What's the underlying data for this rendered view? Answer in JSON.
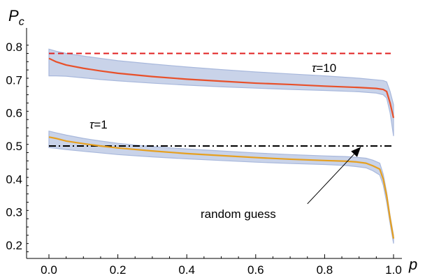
{
  "chart_data": {
    "type": "line",
    "xlabel": "p",
    "ylabel": "P",
    "ylabel_sub": "c",
    "xlim": [
      0.0,
      1.0
    ],
    "ylim": [
      0.18,
      0.82
    ],
    "xticks": [
      0.0,
      0.2,
      0.4,
      0.6,
      0.8,
      1.0
    ],
    "xtick_labels": [
      "0.0",
      "0.2",
      "0.4",
      "0.6",
      "0.8",
      "1.0"
    ],
    "yticks": [
      0.2,
      0.3,
      0.4,
      0.5,
      0.6,
      0.7,
      0.8
    ],
    "ytick_labels": [
      "0.2",
      "0.3",
      "0.4",
      "0.5",
      "0.6",
      "0.7",
      "0.8"
    ],
    "series": [
      {
        "label": "τ=10",
        "label_symbol": "τ",
        "label_value": "=10",
        "color": "#e8502a",
        "x": [
          0.0,
          0.02,
          0.05,
          0.1,
          0.15,
          0.2,
          0.3,
          0.4,
          0.5,
          0.6,
          0.7,
          0.8,
          0.9,
          0.95,
          0.97,
          0.98,
          0.99,
          1.0
        ],
        "y": [
          0.765,
          0.755,
          0.745,
          0.735,
          0.727,
          0.72,
          0.71,
          0.702,
          0.696,
          0.69,
          0.686,
          0.681,
          0.677,
          0.674,
          0.671,
          0.665,
          0.63,
          0.585
        ],
        "band_upper": [
          0.793,
          0.787,
          0.78,
          0.772,
          0.765,
          0.758,
          0.748,
          0.739,
          0.731,
          0.724,
          0.718,
          0.712,
          0.705,
          0.7,
          0.698,
          0.694,
          0.665,
          0.625
        ],
        "band_lower": [
          0.712,
          0.712,
          0.711,
          0.706,
          0.701,
          0.697,
          0.69,
          0.684,
          0.679,
          0.675,
          0.671,
          0.668,
          0.664,
          0.66,
          0.655,
          0.645,
          0.6,
          0.53
        ]
      },
      {
        "label": "τ=1",
        "label_symbol": "τ",
        "label_value": "=1",
        "color": "#e6a020",
        "x": [
          0.0,
          0.02,
          0.05,
          0.1,
          0.15,
          0.2,
          0.3,
          0.4,
          0.5,
          0.6,
          0.7,
          0.8,
          0.86,
          0.89,
          0.92,
          0.94,
          0.96,
          0.97,
          0.98,
          0.99,
          1.0
        ],
        "y": [
          0.527,
          0.523,
          0.515,
          0.507,
          0.5,
          0.494,
          0.485,
          0.477,
          0.471,
          0.465,
          0.46,
          0.456,
          0.454,
          0.452,
          0.448,
          0.44,
          0.43,
          0.4,
          0.35,
          0.28,
          0.22
        ],
        "band_upper": [
          0.545,
          0.54,
          0.533,
          0.523,
          0.515,
          0.508,
          0.498,
          0.491,
          0.485,
          0.479,
          0.474,
          0.47,
          0.468,
          0.466,
          0.463,
          0.457,
          0.448,
          0.415,
          0.36,
          0.29,
          0.23
        ],
        "band_lower": [
          0.495,
          0.493,
          0.489,
          0.484,
          0.479,
          0.474,
          0.467,
          0.461,
          0.456,
          0.451,
          0.447,
          0.444,
          0.441,
          0.438,
          0.434,
          0.425,
          0.412,
          0.382,
          0.33,
          0.265,
          0.205
        ]
      }
    ],
    "reference_lines": [
      {
        "label": "",
        "y": 0.78,
        "color": "#e02020",
        "style": "dashed"
      },
      {
        "label": "random guess",
        "y": 0.5,
        "color": "#000000",
        "style": "dashdot"
      }
    ],
    "annotations": {
      "arrow_text": "random guess",
      "arrow_from": [
        0.75,
        0.325
      ],
      "arrow_to": [
        0.905,
        0.497
      ]
    },
    "band_color": "#b7c4e2",
    "band_edge_color": "#a8b8dc",
    "grid": false,
    "legend": "none"
  }
}
